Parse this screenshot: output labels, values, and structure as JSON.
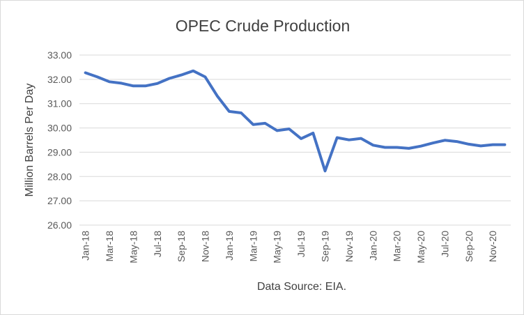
{
  "chart_data": {
    "type": "line",
    "title": "OPEC Crude Production",
    "xlabel": "Data Source: EIA.",
    "ylabel": "Million Barrels Per Day",
    "ylim": [
      26,
      33
    ],
    "yticks": [
      "26.00",
      "27.00",
      "28.00",
      "29.00",
      "30.00",
      "31.00",
      "32.00",
      "33.00"
    ],
    "grid": true,
    "legend": "none",
    "categories": [
      "Jan-18",
      "Feb-18",
      "Mar-18",
      "Apr-18",
      "May-18",
      "Jun-18",
      "Jul-18",
      "Aug-18",
      "Sep-18",
      "Oct-18",
      "Nov-18",
      "Dec-18",
      "Jan-19",
      "Feb-19",
      "Mar-19",
      "Apr-19",
      "May-19",
      "Jun-19",
      "Jul-19",
      "Aug-19",
      "Sep-19",
      "Oct-19",
      "Nov-19",
      "Dec-19",
      "Jan-20",
      "Feb-20",
      "Mar-20",
      "Apr-20",
      "May-20",
      "Jun-20",
      "Jul-20",
      "Aug-20",
      "Sep-20",
      "Oct-20",
      "Nov-20",
      "Dec-20"
    ],
    "tick_labels": [
      "Jan-18",
      "Mar-18",
      "May-18",
      "Jul-18",
      "Sep-18",
      "Nov-18",
      "Jan-19",
      "Mar-19",
      "May-19",
      "Jul-19",
      "Sep-19",
      "Nov-19",
      "Jan-20",
      "Mar-20",
      "May-20",
      "Jul-20",
      "Sep-20",
      "Nov-20"
    ],
    "series": [
      {
        "color": "#4472c4",
        "values": [
          32.27,
          32.1,
          31.9,
          31.84,
          31.73,
          31.73,
          31.83,
          32.04,
          32.18,
          32.35,
          32.1,
          31.32,
          30.68,
          30.62,
          30.14,
          30.19,
          29.89,
          29.96,
          29.56,
          29.79,
          28.23,
          29.6,
          29.51,
          29.57,
          29.29,
          29.2,
          29.2,
          29.16,
          29.25,
          29.38,
          29.49,
          29.44,
          29.33,
          29.26,
          29.31,
          29.31
        ]
      }
    ]
  }
}
